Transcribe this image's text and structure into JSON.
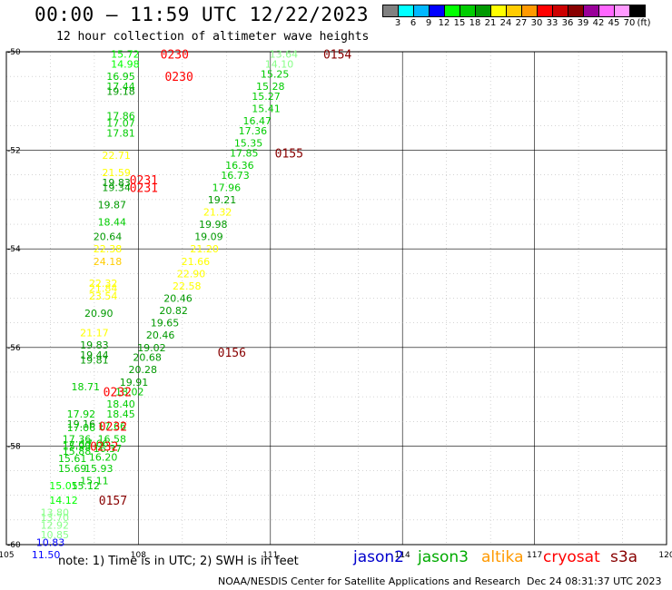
{
  "header": {
    "title": "00:00 – 11:59 UTC 12/22/2023",
    "subtitle": "12 hour collection of altimeter wave heights"
  },
  "colorbar": {
    "unit_label": "(ft)",
    "colors": [
      "#808080",
      "#00ffff",
      "#00b8ff",
      "#0000ff",
      "#00ff00",
      "#00cc00",
      "#009900",
      "#ffff00",
      "#ffcc00",
      "#ff9900",
      "#ff0000",
      "#cc0000",
      "#880000",
      "#990099",
      "#ff66ff",
      "#ff99ff",
      "#000000"
    ],
    "labels": [
      "3",
      "6",
      "9",
      "12",
      "15",
      "18",
      "21",
      "24",
      "27",
      "30",
      "33",
      "36",
      "39",
      "42",
      "45",
      "70"
    ]
  },
  "axes": {
    "lon_labels": [
      "105",
      "108",
      "111",
      "114",
      "117",
      "120"
    ],
    "lat_labels": [
      "-50",
      "-52",
      "-54",
      "-56",
      "-58",
      "-60"
    ]
  },
  "chart_data": {
    "type": "map",
    "lon_range": [
      105,
      120
    ],
    "lat_range": [
      -60,
      -50
    ],
    "grid": true,
    "color_scale_ft": [
      3,
      6,
      9,
      12,
      15,
      18,
      21,
      24,
      27,
      30,
      33,
      36,
      39,
      42,
      45,
      70
    ],
    "pass_times": [
      {
        "text": "0230",
        "lon": 108.5,
        "lat": -50.05
      },
      {
        "text": "0230",
        "lon": 108.6,
        "lat": -50.5
      },
      {
        "text": "0154",
        "lon": 112.2,
        "lat": -50.05
      },
      {
        "text": "0155",
        "lon": 111.1,
        "lat": -52.05
      },
      {
        "text": "0231",
        "lon": 107.8,
        "lat": -52.6
      },
      {
        "text": "0231",
        "lon": 107.8,
        "lat": -52.75
      },
      {
        "text": "0156",
        "lon": 109.8,
        "lat": -56.1
      },
      {
        "text": "0232",
        "lon": 107.2,
        "lat": -56.9
      },
      {
        "text": "0232",
        "lon": 107.1,
        "lat": -57.6
      },
      {
        "text": "0232",
        "lon": 106.9,
        "lat": -58.0
      },
      {
        "text": "0157",
        "lon": 107.1,
        "lat": -59.1
      }
    ],
    "points": [
      {
        "v": 15.72,
        "lon": 107.7,
        "lat": -50.05,
        "c": "#00ff00"
      },
      {
        "v": 14.98,
        "lon": 107.7,
        "lat": -50.25,
        "c": "#00ff00"
      },
      {
        "v": 16.95,
        "lon": 107.6,
        "lat": -50.5,
        "c": "#00cc00"
      },
      {
        "v": 17.44,
        "lon": 107.6,
        "lat": -50.7,
        "c": "#00cc00"
      },
      {
        "v": 19.18,
        "lon": 107.6,
        "lat": -50.8,
        "c": "#009900"
      },
      {
        "v": 17.86,
        "lon": 107.6,
        "lat": -51.3,
        "c": "#00cc00"
      },
      {
        "v": 17.07,
        "lon": 107.6,
        "lat": -51.45,
        "c": "#00cc00"
      },
      {
        "v": 17.81,
        "lon": 107.6,
        "lat": -51.65,
        "c": "#00cc00"
      },
      {
        "v": 22.71,
        "lon": 107.5,
        "lat": -52.1,
        "c": "#ffff00"
      },
      {
        "v": 21.59,
        "lon": 107.5,
        "lat": -52.45,
        "c": "#ffff00"
      },
      {
        "v": 19.83,
        "lon": 107.5,
        "lat": -52.65,
        "c": "#009900"
      },
      {
        "v": 19.34,
        "lon": 107.5,
        "lat": -52.75,
        "c": "#009900"
      },
      {
        "v": 19.87,
        "lon": 107.4,
        "lat": -53.1,
        "c": "#009900"
      },
      {
        "v": 18.44,
        "lon": 107.4,
        "lat": -53.45,
        "c": "#00cc00"
      },
      {
        "v": 20.64,
        "lon": 107.3,
        "lat": -53.75,
        "c": "#009900"
      },
      {
        "v": 22.38,
        "lon": 107.3,
        "lat": -54.0,
        "c": "#ffff00"
      },
      {
        "v": 24.18,
        "lon": 107.3,
        "lat": -54.25,
        "c": "#ffcc00"
      },
      {
        "v": 22.32,
        "lon": 107.2,
        "lat": -54.7,
        "c": "#ffff00"
      },
      {
        "v": 21.84,
        "lon": 107.2,
        "lat": -54.8,
        "c": "#ffff00"
      },
      {
        "v": 23.54,
        "lon": 107.2,
        "lat": -54.95,
        "c": "#ffff00"
      },
      {
        "v": 20.9,
        "lon": 107.1,
        "lat": -55.3,
        "c": "#009900"
      },
      {
        "v": 21.17,
        "lon": 107.0,
        "lat": -55.7,
        "c": "#ffff00"
      },
      {
        "v": 19.83,
        "lon": 107.0,
        "lat": -55.95,
        "c": "#009900"
      },
      {
        "v": 19.44,
        "lon": 107.0,
        "lat": -56.15,
        "c": "#009900"
      },
      {
        "v": 19.81,
        "lon": 107.0,
        "lat": -56.25,
        "c": "#009900"
      },
      {
        "v": 18.71,
        "lon": 106.8,
        "lat": -56.8,
        "c": "#00cc00"
      },
      {
        "v": 17.92,
        "lon": 106.7,
        "lat": -57.35,
        "c": "#00cc00"
      },
      {
        "v": 19.16,
        "lon": 106.7,
        "lat": -57.55,
        "c": "#009900"
      },
      {
        "v": 17.06,
        "lon": 106.7,
        "lat": -57.62,
        "c": "#00cc00"
      },
      {
        "v": 17.36,
        "lon": 106.6,
        "lat": -57.85,
        "c": "#00cc00"
      },
      {
        "v": 17.0,
        "lon": 106.6,
        "lat": -57.97,
        "c": "#00cc00"
      },
      {
        "v": 15.93,
        "lon": 106.6,
        "lat": -58.0,
        "c": "#00cc00"
      },
      {
        "v": 15.88,
        "lon": 106.6,
        "lat": -58.1,
        "c": "#00cc00"
      },
      {
        "v": 15.61,
        "lon": 106.5,
        "lat": -58.25,
        "c": "#00cc00"
      },
      {
        "v": 15.69,
        "lon": 106.5,
        "lat": -58.45,
        "c": "#00cc00"
      },
      {
        "v": 15.05,
        "lon": 106.3,
        "lat": -58.8,
        "c": "#00ff00"
      },
      {
        "v": 14.12,
        "lon": 106.3,
        "lat": -59.1,
        "c": "#00ff00"
      },
      {
        "v": 13.8,
        "lon": 106.1,
        "lat": -59.35,
        "c": "#88ff88"
      },
      {
        "v": 13.7,
        "lon": 106.1,
        "lat": -59.45,
        "c": "#88ff88"
      },
      {
        "v": 12.92,
        "lon": 106.1,
        "lat": -59.6,
        "c": "#88ff88"
      },
      {
        "v": 10.85,
        "lon": 106.1,
        "lat": -59.8,
        "c": "#88ff88"
      },
      {
        "v": 10.83,
        "lon": 106.0,
        "lat": -59.95,
        "c": "#0000ff"
      },
      {
        "v": 11.5,
        "lon": 105.9,
        "lat": -60.2,
        "c": "#0000ff"
      },
      {
        "v": 17.66,
        "lon": 107.4,
        "lat": -57.6,
        "c": "#00cc00"
      },
      {
        "v": 17.66,
        "lon": 107.0,
        "lat": -57.95,
        "c": "#00cc00"
      },
      {
        "v": 16.58,
        "lon": 107.4,
        "lat": -57.85,
        "c": "#00cc00"
      },
      {
        "v": 16.37,
        "lon": 107.3,
        "lat": -58.05,
        "c": "#00cc00"
      },
      {
        "v": 16.2,
        "lon": 107.2,
        "lat": -58.22,
        "c": "#00cc00"
      },
      {
        "v": 15.93,
        "lon": 107.1,
        "lat": -58.45,
        "c": "#00cc00"
      },
      {
        "v": 15.11,
        "lon": 107.0,
        "lat": -58.7,
        "c": "#00cc00"
      },
      {
        "v": 15.12,
        "lon": 106.8,
        "lat": -58.8,
        "c": "#00cc00"
      },
      {
        "v": 18.45,
        "lon": 107.6,
        "lat": -57.35,
        "c": "#00cc00"
      },
      {
        "v": 18.4,
        "lon": 107.6,
        "lat": -57.15,
        "c": "#00cc00"
      },
      {
        "v": 18.02,
        "lon": 107.8,
        "lat": -56.9,
        "c": "#00cc00"
      },
      {
        "v": 19.91,
        "lon": 107.9,
        "lat": -56.7,
        "c": "#009900"
      },
      {
        "v": 20.28,
        "lon": 108.1,
        "lat": -56.45,
        "c": "#009900"
      },
      {
        "v": 20.68,
        "lon": 108.2,
        "lat": -56.2,
        "c": "#009900"
      },
      {
        "v": 19.02,
        "lon": 108.3,
        "lat": -56.0,
        "c": "#009900"
      },
      {
        "v": 20.46,
        "lon": 108.5,
        "lat": -55.75,
        "c": "#009900"
      },
      {
        "v": 19.65,
        "lon": 108.6,
        "lat": -55.5,
        "c": "#009900"
      },
      {
        "v": 20.82,
        "lon": 108.8,
        "lat": -55.25,
        "c": "#009900"
      },
      {
        "v": 20.46,
        "lon": 108.9,
        "lat": -55.0,
        "c": "#009900"
      },
      {
        "v": 22.58,
        "lon": 109.1,
        "lat": -54.75,
        "c": "#ffff00"
      },
      {
        "v": 22.9,
        "lon": 109.2,
        "lat": -54.5,
        "c": "#ffff00"
      },
      {
        "v": 21.66,
        "lon": 109.3,
        "lat": -54.25,
        "c": "#ffff00"
      },
      {
        "v": 21.2,
        "lon": 109.5,
        "lat": -54.0,
        "c": "#ffff00"
      },
      {
        "v": 19.09,
        "lon": 109.6,
        "lat": -53.75,
        "c": "#009900"
      },
      {
        "v": 19.98,
        "lon": 109.7,
        "lat": -53.5,
        "c": "#009900"
      },
      {
        "v": 21.32,
        "lon": 109.8,
        "lat": -53.25,
        "c": "#ffff00"
      },
      {
        "v": 19.21,
        "lon": 109.9,
        "lat": -53.0,
        "c": "#009900"
      },
      {
        "v": 17.96,
        "lon": 110.0,
        "lat": -52.75,
        "c": "#00cc00"
      },
      {
        "v": 16.73,
        "lon": 110.2,
        "lat": -52.5,
        "c": "#00cc00"
      },
      {
        "v": 16.36,
        "lon": 110.3,
        "lat": -52.3,
        "c": "#00cc00"
      },
      {
        "v": 17.85,
        "lon": 110.4,
        "lat": -52.05,
        "c": "#00cc00"
      },
      {
        "v": 15.35,
        "lon": 110.5,
        "lat": -51.85,
        "c": "#00cc00"
      },
      {
        "v": 17.36,
        "lon": 110.6,
        "lat": -51.6,
        "c": "#00cc00"
      },
      {
        "v": 16.47,
        "lon": 110.7,
        "lat": -51.4,
        "c": "#00cc00"
      },
      {
        "v": 15.41,
        "lon": 110.9,
        "lat": -51.15,
        "c": "#00cc00"
      },
      {
        "v": 15.27,
        "lon": 110.9,
        "lat": -50.9,
        "c": "#00cc00"
      },
      {
        "v": 15.28,
        "lon": 111.0,
        "lat": -50.7,
        "c": "#00cc00"
      },
      {
        "v": 15.25,
        "lon": 111.1,
        "lat": -50.45,
        "c": "#00cc00"
      },
      {
        "v": 14.1,
        "lon": 111.2,
        "lat": -50.25,
        "c": "#88ff88"
      },
      {
        "v": 13.64,
        "lon": 111.3,
        "lat": -50.05,
        "c": "#88ff88"
      }
    ]
  },
  "footer": {
    "note": "note: 1) Time is in UTC; 2) SWH is in feet",
    "satellites": [
      {
        "label": "jason2",
        "color": "#0000cc"
      },
      {
        "label": "jason3",
        "color": "#00aa00"
      },
      {
        "label": "altika",
        "color": "#ff9900"
      },
      {
        "label": "cryosat",
        "color": "#ff0000"
      },
      {
        "label": "s3a",
        "color": "#880000"
      }
    ],
    "credit": "NOAA/NESDIS Center for Satellite Applications and Research",
    "timestamp": "Dec 24 08:31:37 UTC 2023"
  }
}
